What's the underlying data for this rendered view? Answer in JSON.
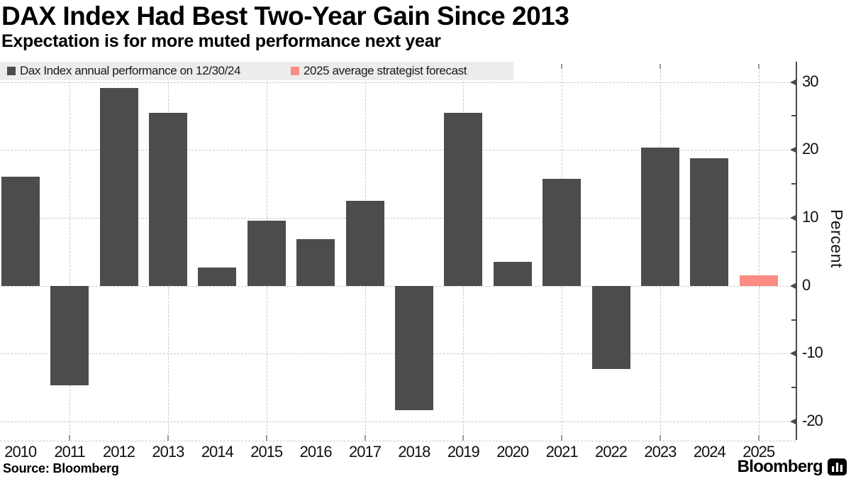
{
  "title": "DAX Index Had Best Two-Year Gain Since 2013",
  "subtitle": "Expectation is for more muted performance next year",
  "legend": {
    "items": [
      {
        "label": "Dax Index annual performance on 12/30/24",
        "color": "#4c4c4c"
      },
      {
        "label": "2025 average strategist forecast",
        "color": "#fa8c84"
      }
    ]
  },
  "source": "Source: Bloomberg",
  "branding": {
    "logo_text": "Bloomberg",
    "logo_icon": "bloomberg-bars-icon"
  },
  "colors": {
    "bar": "#4c4c4c",
    "forecast": "#fa8c84",
    "grid": "#c9c9c9",
    "axis": "#4a4a4a",
    "legend_band": "#ececec"
  },
  "chart_data": {
    "type": "bar",
    "categories": [
      "2010",
      "2011",
      "2012",
      "2013",
      "2014",
      "2015",
      "2016",
      "2017",
      "2018",
      "2019",
      "2020",
      "2021",
      "2022",
      "2023",
      "2024",
      "2025"
    ],
    "series": [
      {
        "name": "Dax Index annual performance on 12/30/24",
        "color": "#4c4c4c",
        "values": [
          16.1,
          -14.7,
          29.1,
          25.5,
          2.7,
          9.6,
          6.9,
          12.5,
          -18.3,
          25.5,
          3.5,
          15.8,
          -12.3,
          20.3,
          18.8,
          null
        ]
      },
      {
        "name": "2025 average strategist forecast",
        "color": "#fa8c84",
        "values": [
          null,
          null,
          null,
          null,
          null,
          null,
          null,
          null,
          null,
          null,
          null,
          null,
          null,
          null,
          null,
          1.5
        ]
      }
    ],
    "title": "DAX Index Had Best Two-Year Gain Since 2013",
    "xlabel": "",
    "ylabel": "Percent",
    "ylim": [
      -22.5,
      32.7
    ],
    "yticks_major": [
      30,
      20,
      10,
      0,
      -10,
      -20
    ],
    "yticks_minor": [
      25,
      15,
      5,
      -5,
      -15
    ],
    "grid": "dashed; horizontal at major y ticks, vertical at odd-year category centers",
    "legend_position": "top-left",
    "axis_side": "right"
  }
}
